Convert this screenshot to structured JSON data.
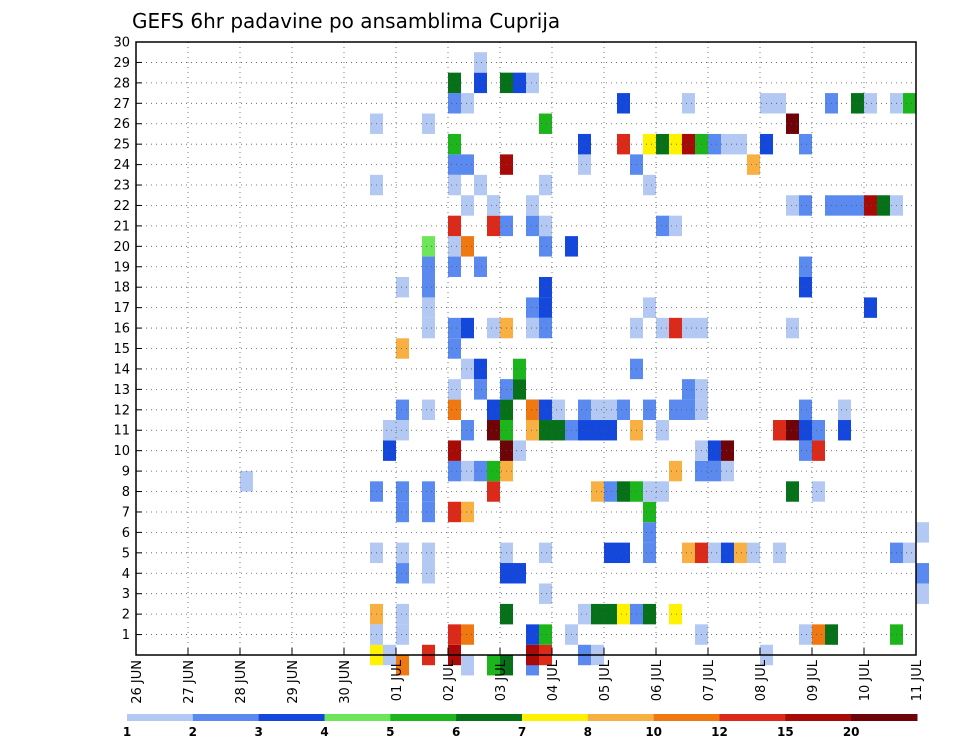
{
  "chart_data": {
    "type": "heatmap",
    "title": "GEFS 6hr padavine po ansamblima Cuprija",
    "x_ticks": [
      "26 JUN",
      "27 JUN",
      "28 JUN",
      "29 JUN",
      "30 JUN",
      "01 JUL",
      "02 JUL",
      "03 JUL",
      "04 JUL",
      "05 JUL",
      "06 JUL",
      "07 JUL",
      "08 JUL",
      "09 JUL",
      "10 JUL",
      "11 JUL"
    ],
    "x_step_hours": 6,
    "y_ticks": [
      "1",
      "2",
      "3",
      "4",
      "5",
      "6",
      "7",
      "8",
      "9",
      "10",
      "11",
      "12",
      "13",
      "14",
      "15",
      "16",
      "17",
      "18",
      "19",
      "20",
      "21",
      "22",
      "23",
      "24",
      "25",
      "26",
      "27",
      "28",
      "29",
      "30"
    ],
    "ylim": [
      0,
      30
    ],
    "grid": true,
    "color_levels": [
      "1",
      "2",
      "3",
      "4",
      "5",
      "6",
      "7",
      "8",
      "10",
      "12",
      "15",
      "20"
    ],
    "colors": [
      "#b4c8f4",
      "#5a8af0",
      "#1448dc",
      "#6ee659",
      "#1cb61c",
      "#07711a",
      "#fff200",
      "#f8b042",
      "#f07810",
      "#dc2a1a",
      "#a80a08",
      "#6e0408"
    ],
    "values": [
      [
        2,
        8.5,
        1
      ],
      [
        4.5,
        0,
        7
      ],
      [
        4.5,
        2,
        9
      ],
      [
        5,
        15,
        9
      ],
      [
        4.5,
        1,
        1
      ],
      [
        4.5,
        5,
        1
      ],
      [
        4.5,
        8,
        2
      ],
      [
        4.5,
        23,
        1
      ],
      [
        4.5,
        26,
        1
      ],
      [
        4.75,
        0,
        1
      ],
      [
        4.75,
        10,
        3
      ],
      [
        4.75,
        11,
        1
      ],
      [
        5,
        -0.5,
        10
      ],
      [
        5,
        1,
        1
      ],
      [
        5,
        2,
        1
      ],
      [
        5,
        4,
        2
      ],
      [
        5,
        5,
        1
      ],
      [
        5,
        7,
        2
      ],
      [
        5,
        8,
        2
      ],
      [
        5,
        11,
        1
      ],
      [
        5,
        12,
        2
      ],
      [
        5,
        18,
        1
      ],
      [
        5.5,
        0,
        12
      ],
      [
        5.5,
        4,
        1
      ],
      [
        5.5,
        5,
        1
      ],
      [
        5.5,
        7,
        2
      ],
      [
        5.5,
        8,
        2
      ],
      [
        5.5,
        12,
        1
      ],
      [
        5.5,
        16,
        1
      ],
      [
        5.5,
        17,
        1
      ],
      [
        5.5,
        18,
        2
      ],
      [
        5.5,
        19,
        2
      ],
      [
        5.5,
        20,
        4
      ],
      [
        5.5,
        26,
        1
      ],
      [
        6,
        0,
        15
      ],
      [
        6,
        9,
        2
      ],
      [
        6,
        10,
        1
      ],
      [
        6,
        19,
        2
      ],
      [
        6,
        23,
        1
      ],
      [
        6,
        1,
        13
      ],
      [
        6,
        7,
        12
      ],
      [
        6,
        10,
        15
      ],
      [
        6,
        12,
        10
      ],
      [
        6,
        13,
        1
      ],
      [
        6,
        15,
        2
      ],
      [
        6,
        16,
        2
      ],
      [
        6,
        20,
        1
      ],
      [
        6,
        21,
        12
      ],
      [
        6,
        24,
        2
      ],
      [
        6,
        25,
        5
      ],
      [
        6,
        27,
        2
      ],
      [
        6,
        28,
        6
      ],
      [
        6.25,
        -0.5,
        1
      ],
      [
        6.25,
        1,
        10
      ],
      [
        6.25,
        7,
        8
      ],
      [
        6.25,
        9,
        1
      ],
      [
        6.25,
        11,
        2
      ],
      [
        6.25,
        14,
        1
      ],
      [
        6.25,
        16,
        3
      ],
      [
        6.25,
        20,
        10
      ],
      [
        6.25,
        22,
        1
      ],
      [
        6.25,
        24,
        2
      ],
      [
        6.25,
        27,
        1
      ],
      [
        6.5,
        9,
        2
      ],
      [
        6.5,
        13,
        2
      ],
      [
        6.5,
        14,
        3
      ],
      [
        6.5,
        19,
        2
      ],
      [
        6.5,
        23,
        1
      ],
      [
        6.5,
        28,
        3
      ],
      [
        6.5,
        29,
        1
      ],
      [
        6.75,
        -0.5,
        5
      ],
      [
        6.75,
        9,
        5
      ],
      [
        6.75,
        22,
        1
      ],
      [
        7,
        2,
        1
      ],
      [
        7,
        10,
        5
      ],
      [
        7,
        13,
        1
      ],
      [
        6.75,
        8,
        14
      ],
      [
        6.75,
        11,
        20
      ],
      [
        6.75,
        12,
        3
      ],
      [
        6.75,
        16,
        1
      ],
      [
        6.75,
        21,
        12
      ],
      [
        6.75,
        22,
        1
      ],
      [
        7,
        4,
        2
      ],
      [
        7,
        5,
        1
      ],
      [
        7,
        -0.5,
        6
      ],
      [
        7,
        2,
        6
      ],
      [
        7,
        4,
        3
      ],
      [
        7,
        9,
        8
      ],
      [
        7,
        10,
        20
      ],
      [
        7,
        11,
        5
      ],
      [
        7,
        12,
        6
      ],
      [
        7,
        13,
        2
      ],
      [
        7,
        16,
        8
      ],
      [
        7,
        21,
        2
      ],
      [
        7,
        24,
        17
      ],
      [
        7,
        28,
        6
      ],
      [
        7.25,
        4,
        3
      ],
      [
        7.25,
        10,
        1
      ],
      [
        7.25,
        13,
        6
      ],
      [
        7.25,
        14,
        5
      ],
      [
        7.25,
        28,
        3
      ],
      [
        7.5,
        -0.5,
        2
      ],
      [
        7.5,
        11,
        2
      ],
      [
        7.5,
        12,
        3
      ],
      [
        7.5,
        16,
        1
      ],
      [
        7.5,
        21,
        2
      ],
      [
        7.5,
        22,
        1
      ],
      [
        7.5,
        28,
        1
      ],
      [
        7.5,
        0,
        17
      ],
      [
        7.5,
        1,
        3
      ],
      [
        7.5,
        11,
        8
      ],
      [
        7.5,
        12,
        10
      ],
      [
        7.5,
        17,
        2
      ],
      [
        7.75,
        0,
        14
      ],
      [
        7.75,
        1,
        5
      ],
      [
        7.75,
        3,
        1
      ],
      [
        7.75,
        5,
        1
      ],
      [
        7.75,
        11,
        6
      ],
      [
        7.75,
        12,
        3
      ],
      [
        7.75,
        16,
        2
      ],
      [
        7.75,
        17,
        3
      ],
      [
        7.75,
        18,
        3
      ],
      [
        7.75,
        20,
        2
      ],
      [
        7.75,
        21,
        1
      ],
      [
        7.75,
        23,
        1
      ],
      [
        7.75,
        26,
        5
      ],
      [
        8,
        11,
        6
      ],
      [
        8,
        12,
        1
      ],
      [
        8.25,
        1,
        1
      ],
      [
        8.25,
        11,
        2
      ],
      [
        8.25,
        20,
        3
      ],
      [
        8.5,
        0,
        2
      ],
      [
        8.5,
        2,
        1
      ],
      [
        8.5,
        11,
        3
      ],
      [
        8.5,
        12,
        2
      ],
      [
        8.5,
        24,
        1
      ],
      [
        8.5,
        25,
        3
      ],
      [
        8.75,
        0,
        1
      ],
      [
        8.75,
        2,
        6
      ],
      [
        8.75,
        8,
        8
      ],
      [
        8.75,
        11,
        3
      ],
      [
        8.75,
        12,
        1
      ],
      [
        9,
        2,
        6
      ],
      [
        9,
        5,
        3
      ],
      [
        9,
        8,
        2
      ],
      [
        9,
        11,
        3
      ],
      [
        9,
        12,
        1
      ],
      [
        9.25,
        2,
        7
      ],
      [
        9.25,
        5,
        3
      ],
      [
        9.25,
        8,
        6
      ],
      [
        9.25,
        12,
        2
      ],
      [
        9.25,
        25,
        12
      ],
      [
        9.25,
        27,
        3
      ],
      [
        9.5,
        2,
        2
      ],
      [
        9.5,
        8,
        5
      ],
      [
        9.5,
        11,
        9
      ],
      [
        9.5,
        14,
        2
      ],
      [
        9.5,
        16,
        1
      ],
      [
        9.5,
        24,
        2
      ],
      [
        9.75,
        2,
        6
      ],
      [
        9.75,
        5,
        2
      ],
      [
        9.75,
        6,
        2
      ],
      [
        9.75,
        7,
        5
      ],
      [
        9.75,
        8,
        1
      ],
      [
        9.75,
        12,
        2
      ],
      [
        9.75,
        17,
        1
      ],
      [
        9.75,
        23,
        1
      ],
      [
        9.75,
        25,
        7
      ],
      [
        10,
        8,
        1
      ],
      [
        10,
        11,
        1
      ],
      [
        10,
        16,
        1
      ],
      [
        10,
        21,
        2
      ],
      [
        10,
        25,
        6
      ],
      [
        10.25,
        2,
        7
      ],
      [
        10.25,
        9,
        8
      ],
      [
        10.25,
        12,
        2
      ],
      [
        10.25,
        16,
        12
      ],
      [
        10.25,
        21,
        1
      ],
      [
        10.25,
        25,
        7
      ],
      [
        10.5,
        5,
        8
      ],
      [
        10.5,
        12,
        2
      ],
      [
        10.5,
        13,
        2
      ],
      [
        10.5,
        16,
        1
      ],
      [
        10.5,
        25,
        15
      ],
      [
        10.5,
        27,
        1
      ],
      [
        10.75,
        1,
        1
      ],
      [
        10.75,
        5,
        12
      ],
      [
        10.75,
        9,
        2
      ],
      [
        10.75,
        10,
        1
      ],
      [
        10.75,
        12,
        1
      ],
      [
        10.75,
        13,
        1
      ],
      [
        10.75,
        16,
        1
      ],
      [
        10.75,
        25,
        5
      ],
      [
        11,
        5,
        1
      ],
      [
        11,
        9,
        2
      ],
      [
        11,
        10,
        3
      ],
      [
        11,
        25,
        2
      ],
      [
        11.25,
        5,
        3
      ],
      [
        11.25,
        9,
        1
      ],
      [
        11.25,
        10,
        20
      ],
      [
        11.25,
        25,
        1
      ],
      [
        11.5,
        5,
        8
      ],
      [
        11.5,
        25,
        1
      ],
      [
        11.75,
        5,
        1
      ],
      [
        11.75,
        24,
        8
      ],
      [
        12,
        0,
        1
      ],
      [
        12,
        25,
        3
      ],
      [
        12,
        27,
        1
      ],
      [
        12.25,
        5,
        1
      ],
      [
        12.25,
        27,
        1
      ],
      [
        12.25,
        11,
        12
      ],
      [
        12.5,
        16,
        1
      ],
      [
        12.5,
        22,
        1
      ],
      [
        12.5,
        8,
        6
      ],
      [
        12.5,
        11,
        20
      ],
      [
        12.5,
        26,
        20
      ],
      [
        12.75,
        1,
        1
      ],
      [
        12.75,
        10,
        2
      ],
      [
        12.75,
        11,
        3
      ],
      [
        12.75,
        12,
        2
      ],
      [
        12.75,
        18,
        3
      ],
      [
        12.75,
        19,
        2
      ],
      [
        12.75,
        22,
        2
      ],
      [
        12.75,
        25,
        2
      ],
      [
        13,
        1,
        10
      ],
      [
        13,
        8,
        1
      ],
      [
        13,
        10,
        12
      ],
      [
        13,
        11,
        2
      ],
      [
        13.25,
        1,
        6
      ],
      [
        13.25,
        22,
        2
      ],
      [
        13.25,
        27,
        2
      ],
      [
        13.5,
        11,
        3
      ],
      [
        13.5,
        12,
        1
      ],
      [
        13.5,
        22,
        2
      ],
      [
        13.75,
        22,
        2
      ],
      [
        13.75,
        27,
        6
      ],
      [
        14,
        17,
        3
      ],
      [
        14,
        22,
        15
      ],
      [
        14,
        27,
        1
      ],
      [
        14.25,
        22,
        6
      ],
      [
        14.5,
        22,
        1
      ],
      [
        14.5,
        27,
        1
      ],
      [
        14.5,
        1,
        5
      ],
      [
        14.5,
        5,
        2
      ],
      [
        14.75,
        5,
        1
      ],
      [
        14.75,
        27,
        5
      ],
      [
        15,
        4,
        2
      ],
      [
        15,
        6,
        1
      ],
      [
        15,
        3,
        1
      ]
    ]
  }
}
